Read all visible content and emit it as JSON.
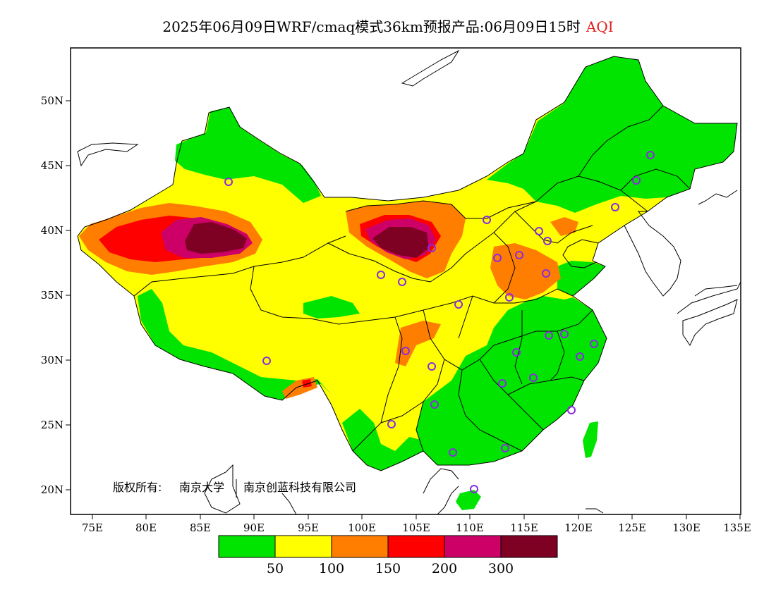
{
  "title": {
    "main": "2025年06月09日WRF/cmaq模式36km预报产品:06月09日15时",
    "variable": "AQI"
  },
  "axes": {
    "lat_labels": [
      "50N",
      "45N",
      "40N",
      "35N",
      "30N",
      "25N",
      "20N"
    ],
    "lon_labels": [
      "75E",
      "80E",
      "85E",
      "90E",
      "95E",
      "100E",
      "105E",
      "110E",
      "115E",
      "120E",
      "125E",
      "130E",
      "135E"
    ]
  },
  "copyright": {
    "prefix": "版权所有:",
    "org1": "南京大学",
    "org2": "南京创蓝科技有限公司"
  },
  "colorbar": {
    "colors": [
      "#00e400",
      "#ffff00",
      "#ff7e00",
      "#ff0000",
      "#cc0066",
      "#7e0023"
    ],
    "labels": [
      "50",
      "100",
      "150",
      "200",
      "300"
    ]
  }
}
